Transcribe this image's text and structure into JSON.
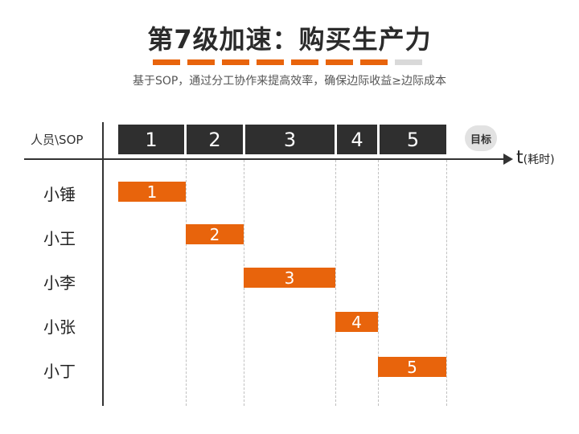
{
  "title": "第7级加速：购买生产力",
  "subtitle": "基于SOP，通过分工协作来提高效率，确保边际收益≥边际成本",
  "header_label": "人员\\SOP",
  "sop_steps": [
    "1",
    "2",
    "3",
    "4",
    "5"
  ],
  "goal_label": "目标",
  "axis": {
    "t": "t",
    "unit": "(耗时)"
  },
  "people": [
    "小锤",
    "小王",
    "小李",
    "小张",
    "小丁"
  ],
  "bars": [
    "1",
    "2",
    "3",
    "4",
    "5"
  ],
  "colors": {
    "accent": "#e8640c",
    "dark": "#2f2f2f",
    "gray": "#d9d9d9"
  }
}
